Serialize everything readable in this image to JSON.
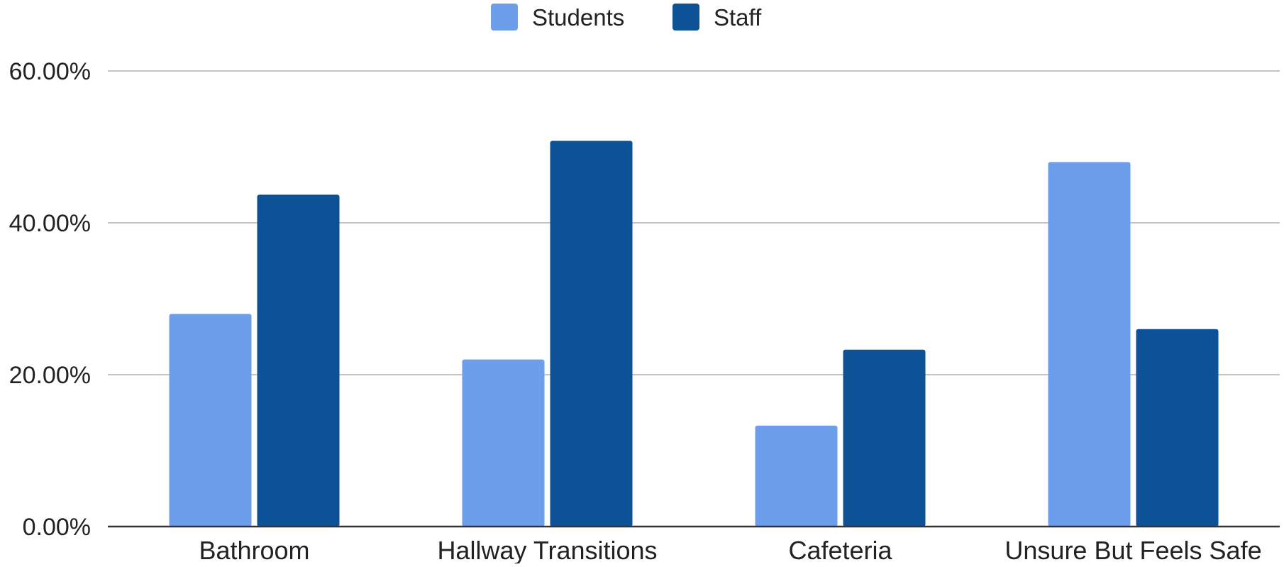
{
  "chart_data": {
    "type": "bar",
    "title": "",
    "xlabel": "",
    "ylabel": "",
    "categories": [
      "Bathroom",
      "Hallway Transitions",
      "Cafeteria",
      "Unsure But Feels Safe"
    ],
    "series": [
      {
        "name": "Students",
        "color": "#6d9eeb",
        "values": [
          0.28,
          0.22,
          0.133,
          0.48
        ]
      },
      {
        "name": "Staff",
        "color": "#0d5296",
        "values": [
          0.437,
          0.508,
          0.233,
          0.26
        ]
      }
    ],
    "ylim": [
      0,
      0.6
    ],
    "yticks": [
      {
        "value": 0,
        "label": "0.00%"
      },
      {
        "value": 0.2,
        "label": "20.00%"
      },
      {
        "value": 0.4,
        "label": "40.00%"
      },
      {
        "value": 0.6,
        "label": "60.00%"
      }
    ],
    "grid": true,
    "legend_position": "top-center"
  }
}
